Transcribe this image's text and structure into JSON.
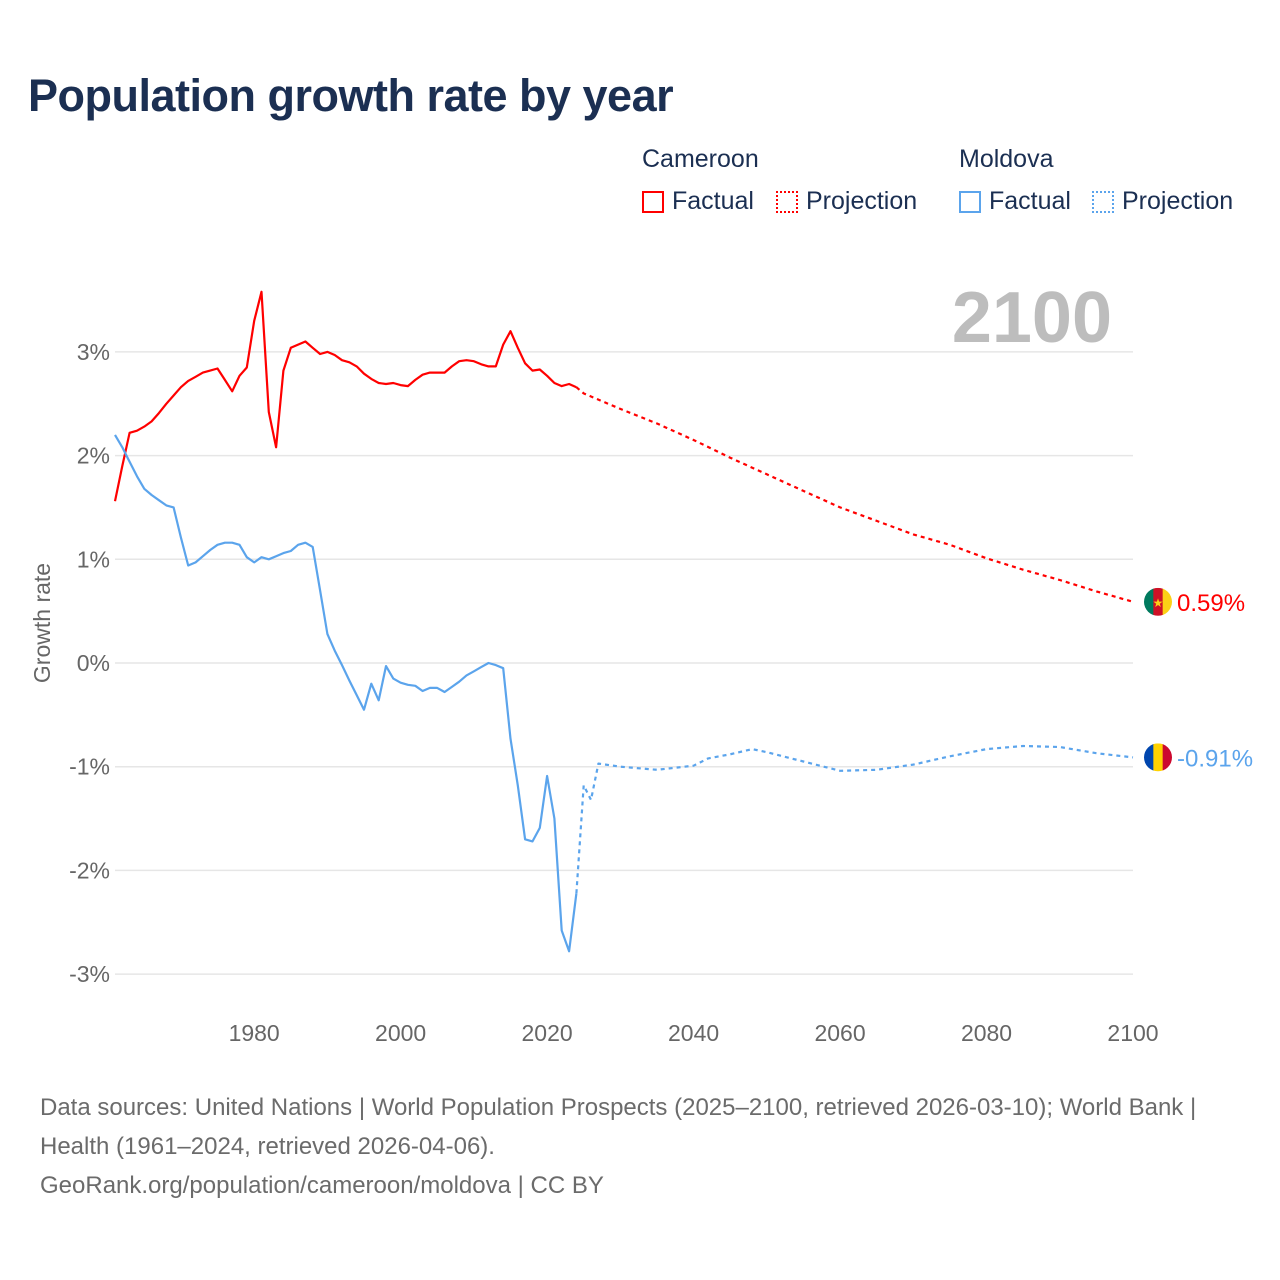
{
  "title": "Population growth rate by year",
  "legend": {
    "groups": [
      {
        "name": "Cameroon",
        "color": "#ff0000",
        "factual": "Factual",
        "projection": "Projection"
      },
      {
        "name": "Moldova",
        "color": "#5ba4ec",
        "factual": "Factual",
        "projection": "Projection"
      }
    ]
  },
  "year_label": "2100",
  "footer": {
    "line1": "Data sources: United Nations | World Population Prospects (2025–2100, retrieved 2026-03-10); World Bank | Health (1961–2024, retrieved 2026-04-06).",
    "line2": "GeoRank.org/population/cameroon/moldova | CC BY"
  },
  "chart_data": {
    "type": "line",
    "title": "Population growth rate by year",
    "xlabel": "",
    "ylabel": "Growth rate",
    "xlim": [
      1961,
      2100
    ],
    "ylim": [
      -3.3,
      3.6
    ],
    "x_ticks": [
      1980,
      2000,
      2020,
      2040,
      2060,
      2080,
      2100
    ],
    "x_tick_labels": [
      "1980",
      "2000",
      "2020",
      "2040",
      "2060",
      "2080",
      "2100"
    ],
    "y_ticks": [
      3,
      2,
      1,
      0,
      -1,
      -2,
      -3
    ],
    "y_tick_labels": [
      "3%",
      "2%",
      "1%",
      "0%",
      "-1%",
      "-2%",
      "-3%"
    ],
    "grid": true,
    "legend_position": "top-right",
    "end_labels": [
      "0.59%",
      "-0.91%"
    ],
    "series": [
      {
        "name": "Cameroon",
        "kind": "Factual",
        "color": "#ff0000",
        "x": [
          1961,
          1962,
          1963,
          1964,
          1965,
          1966,
          1967,
          1968,
          1969,
          1970,
          1971,
          1972,
          1973,
          1974,
          1975,
          1976,
          1977,
          1978,
          1979,
          1980,
          1981,
          1982,
          1983,
          1984,
          1985,
          1986,
          1987,
          1988,
          1989,
          1990,
          1991,
          1992,
          1993,
          1994,
          1995,
          1996,
          1997,
          1998,
          1999,
          2000,
          2001,
          2002,
          2003,
          2004,
          2005,
          2006,
          2007,
          2008,
          2009,
          2010,
          2011,
          2012,
          2013,
          2014,
          2015,
          2016,
          2017,
          2018,
          2019,
          2020,
          2021,
          2022,
          2023,
          2024
        ],
        "y": [
          1.56,
          1.9,
          2.22,
          2.24,
          2.28,
          2.33,
          2.41,
          2.5,
          2.58,
          2.66,
          2.72,
          2.76,
          2.8,
          2.82,
          2.84,
          2.73,
          2.62,
          2.77,
          2.85,
          3.3,
          3.58,
          2.42,
          2.08,
          2.82,
          3.04,
          3.07,
          3.1,
          3.04,
          2.98,
          3.0,
          2.97,
          2.92,
          2.9,
          2.86,
          2.79,
          2.74,
          2.7,
          2.69,
          2.7,
          2.68,
          2.67,
          2.73,
          2.78,
          2.8,
          2.8,
          2.8,
          2.86,
          2.91,
          2.92,
          2.91,
          2.88,
          2.86,
          2.86,
          3.07,
          3.2,
          3.04,
          2.89,
          2.82,
          2.83,
          2.77,
          2.7,
          2.67,
          2.69,
          2.66
        ]
      },
      {
        "name": "Cameroon",
        "kind": "Projection",
        "color": "#ff0000",
        "x": [
          2024,
          2025,
          2030,
          2035,
          2040,
          2045,
          2050,
          2055,
          2060,
          2065,
          2070,
          2075,
          2080,
          2085,
          2090,
          2095,
          2100
        ],
        "y": [
          2.66,
          2.6,
          2.45,
          2.31,
          2.15,
          1.98,
          1.82,
          1.66,
          1.5,
          1.37,
          1.24,
          1.14,
          1.01,
          0.9,
          0.8,
          0.69,
          0.59
        ]
      },
      {
        "name": "Moldova",
        "kind": "Factual",
        "color": "#5ba4ec",
        "x": [
          1961,
          1962,
          1963,
          1964,
          1965,
          1966,
          1967,
          1968,
          1969,
          1970,
          1971,
          1972,
          1973,
          1974,
          1975,
          1976,
          1977,
          1978,
          1979,
          1980,
          1981,
          1982,
          1983,
          1984,
          1985,
          1986,
          1987,
          1988,
          1989,
          1990,
          1991,
          1992,
          1993,
          1994,
          1995,
          1996,
          1997,
          1998,
          1999,
          2000,
          2001,
          2002,
          2003,
          2004,
          2005,
          2006,
          2007,
          2008,
          2009,
          2010,
          2011,
          2012,
          2013,
          2014,
          2015,
          2016,
          2017,
          2018,
          2019,
          2020,
          2021,
          2022,
          2023,
          2024
        ],
        "y": [
          2.2,
          2.08,
          1.94,
          1.8,
          1.68,
          1.62,
          1.57,
          1.52,
          1.5,
          1.21,
          0.94,
          0.97,
          1.03,
          1.09,
          1.14,
          1.16,
          1.16,
          1.14,
          1.02,
          0.97,
          1.02,
          1.0,
          1.03,
          1.06,
          1.08,
          1.14,
          1.16,
          1.12,
          0.7,
          0.28,
          0.12,
          -0.02,
          -0.17,
          -0.31,
          -0.45,
          -0.2,
          -0.36,
          -0.03,
          -0.15,
          -0.19,
          -0.21,
          -0.22,
          -0.27,
          -0.24,
          -0.24,
          -0.28,
          -0.23,
          -0.18,
          -0.12,
          -0.08,
          -0.04,
          0.0,
          -0.02,
          -0.05,
          -0.73,
          -1.18,
          -1.7,
          -1.72,
          -1.59,
          -1.09,
          -1.5,
          -2.58,
          -2.78,
          -2.22
        ]
      },
      {
        "name": "Moldova",
        "kind": "Projection",
        "color": "#5ba4ec",
        "x": [
          2024,
          2025,
          2026,
          2027,
          2028,
          2030,
          2035,
          2040,
          2042,
          2045,
          2048,
          2050,
          2055,
          2060,
          2065,
          2070,
          2075,
          2080,
          2085,
          2090,
          2095,
          2100
        ],
        "y": [
          -2.22,
          -1.18,
          -1.32,
          -0.97,
          -0.98,
          -1.0,
          -1.03,
          -0.99,
          -0.92,
          -0.88,
          -0.83,
          -0.86,
          -0.95,
          -1.04,
          -1.03,
          -0.98,
          -0.9,
          -0.83,
          -0.8,
          -0.81,
          -0.87,
          -0.91
        ]
      }
    ]
  }
}
